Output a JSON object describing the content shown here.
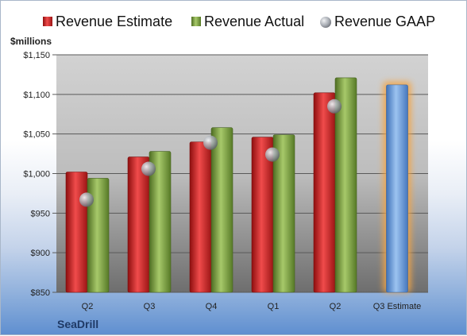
{
  "company": "SeaDrill",
  "chart_data": {
    "type": "bar",
    "units_label": "$millions",
    "categories": [
      "Q2",
      "Q3",
      "Q4",
      "Q1",
      "Q2",
      "Q3 Estimate"
    ],
    "series": [
      {
        "name": "Revenue Estimate",
        "values": [
          1002,
          1021,
          1040,
          1046,
          1102,
          null
        ],
        "color": "#d42020"
      },
      {
        "name": "Revenue Actual",
        "values": [
          994,
          1028,
          1058,
          1049,
          1121,
          null
        ],
        "color": "#7fa440"
      },
      {
        "name": "Revenue GAAP",
        "values": [
          967,
          1006,
          1039,
          1024,
          1085,
          null
        ],
        "color": "#a8adb6"
      }
    ],
    "forecast": {
      "category_index": 5,
      "value": 1112,
      "color": "#6fa0dd",
      "glow_color": "#f4a545"
    },
    "ylim": [
      850,
      1150
    ],
    "yticks": [
      "$850",
      "$900",
      "$950",
      "$1,000",
      "$1,050",
      "$1,100",
      "$1,150"
    ],
    "grid": true,
    "legend_position": "top"
  }
}
